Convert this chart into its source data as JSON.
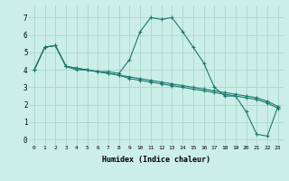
{
  "xlabel": "Humidex (Indice chaleur)",
  "bg_color": "#cceee8",
  "grid_color": "#aad4ce",
  "line_color": "#1a7a6e",
  "xlim": [
    -0.5,
    23.5
  ],
  "ylim": [
    -0.3,
    7.7
  ],
  "xticks": [
    0,
    1,
    2,
    3,
    4,
    5,
    6,
    7,
    8,
    9,
    10,
    11,
    12,
    13,
    14,
    15,
    16,
    17,
    18,
    19,
    20,
    21,
    22,
    23
  ],
  "yticks": [
    0,
    1,
    2,
    3,
    4,
    5,
    6,
    7
  ],
  "series": [
    [
      4.0,
      5.3,
      5.4,
      4.2,
      4.0,
      4.0,
      3.9,
      3.9,
      3.8,
      4.6,
      6.2,
      7.0,
      6.9,
      7.0,
      6.2,
      5.3,
      4.4,
      3.0,
      2.5,
      2.5,
      1.6,
      0.3,
      0.2,
      1.9
    ],
    [
      4.0,
      5.3,
      5.4,
      4.2,
      4.1,
      4.0,
      3.9,
      3.8,
      3.7,
      3.6,
      3.5,
      3.4,
      3.3,
      3.2,
      3.1,
      3.0,
      2.9,
      2.8,
      2.7,
      2.6,
      2.5,
      2.4,
      2.2,
      1.9
    ],
    [
      4.0,
      5.3,
      5.4,
      4.2,
      4.1,
      4.0,
      3.9,
      3.8,
      3.7,
      3.5,
      3.4,
      3.3,
      3.2,
      3.1,
      3.0,
      2.9,
      2.8,
      2.7,
      2.6,
      2.5,
      2.4,
      2.3,
      2.1,
      1.8
    ]
  ]
}
